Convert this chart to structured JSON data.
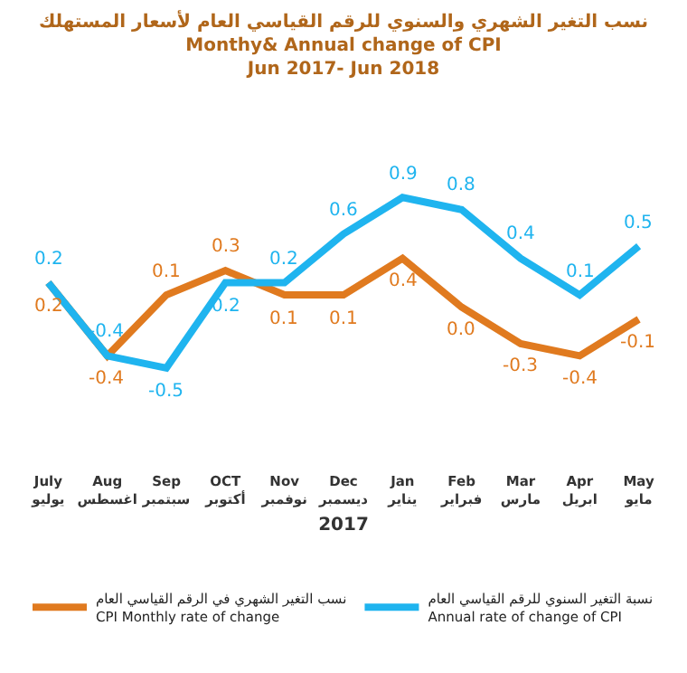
{
  "chart_data": {
    "type": "line",
    "title": "نسب التغير الشهري والسنوي للرقم القياسي العام لأسعار المستهلك\nMonthy& Annual change of CPI\nJun 2017- Jun 2018",
    "xlabel": "2017",
    "categories": [
      "July\nيوليو",
      "Aug\nاغسطس",
      "Sep\nسبتمبر",
      "OCT\nأكتوبر",
      "Nov\nنوفمبر",
      "Dec\nديسمبر",
      "Jan\nيناير",
      "Feb\nفبراير",
      "Mar\nمارس",
      "Apr\nابريل",
      "May\nمايو"
    ],
    "series": [
      {
        "name": "نسب التغير الشهري في الرقم القياسي العام\nCPI Monthly rate of change",
        "color": "#e07a1f",
        "values": [
          0.2,
          -0.4,
          0.1,
          0.3,
          0.1,
          0.1,
          0.4,
          0.0,
          -0.3,
          -0.4,
          -0.1
        ],
        "value_labels": [
          "0.2",
          "-0.4",
          "0.1",
          "0.3",
          "0.1",
          "0.1",
          "0.4",
          "0.0",
          "-0.3",
          "-0.4",
          "-0.1"
        ]
      },
      {
        "name": "نسبة التغير السنوي للرقم القياسي العام\nAnnual rate of change of CPI",
        "color": "#1fb4ef",
        "values": [
          0.2,
          -0.4,
          -0.5,
          0.2,
          0.2,
          0.6,
          0.9,
          0.8,
          0.4,
          0.1,
          0.5
        ],
        "value_labels": [
          "0.2",
          "-0.4",
          "-0.5",
          "0.2",
          "0.2",
          "0.6",
          "0.9",
          "0.8",
          "0.4",
          "0.1",
          "0.5"
        ]
      }
    ],
    "tick_labels": "x",
    "legend": "bottom",
    "marker": "none",
    "line_style": "solid"
  }
}
